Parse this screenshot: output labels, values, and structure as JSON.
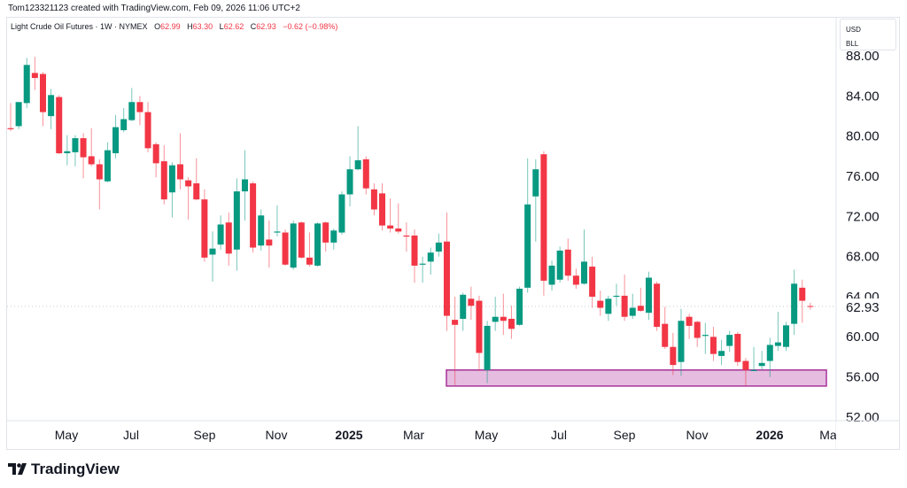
{
  "credit": "Tom123321123 created with TradingView.com, Feb 09, 2026 11:06 UTC+2",
  "legend": {
    "symbol": "Light Crude Oil Futures · 1W · NYMEX",
    "open_key": "O",
    "open": "62.99",
    "high_key": "H",
    "high": "63.30",
    "low_key": "L",
    "low": "62.62",
    "close_key": "C",
    "close": "62.93",
    "change": "−0.62 (−0.98%)"
  },
  "unit_box": {
    "currency": "USD",
    "unit": "BLL"
  },
  "footer": {
    "brand": "TradingView",
    "logo_icon": "tradingview-logo-icon"
  },
  "colors": {
    "up": "#089981",
    "down": "#f23645",
    "zone_fill": "#e6bde0",
    "zone_border": "#a8329a"
  },
  "chart_data": {
    "type": "candlestick",
    "interval": "1W",
    "yticks": [
      "88.00",
      "84.00",
      "80.00",
      "76.00",
      "72.00",
      "68.00",
      "64.00",
      "60.00",
      "56.00",
      "52.00"
    ],
    "ylim": [
      50.5,
      90
    ],
    "last_price_label": "62.93",
    "xticks": [
      {
        "label": "May",
        "bold": false
      },
      {
        "label": "Jul",
        "bold": false
      },
      {
        "label": "Sep",
        "bold": false
      },
      {
        "label": "Nov",
        "bold": false
      },
      {
        "label": "2025",
        "bold": true
      },
      {
        "label": "Mar",
        "bold": false
      },
      {
        "label": "May",
        "bold": false
      },
      {
        "label": "Jul",
        "bold": false
      },
      {
        "label": "Sep",
        "bold": false
      },
      {
        "label": "Nov",
        "bold": false
      },
      {
        "label": "2026",
        "bold": true
      },
      {
        "label": "Ma",
        "bold": false
      }
    ],
    "zone": {
      "top": 56.6,
      "bottom": 55.0
    },
    "ohlc": [
      [
        80.7,
        83.2,
        80.4,
        80.6
      ],
      [
        80.9,
        83.3,
        80.6,
        83.3
      ],
      [
        83.2,
        87.7,
        82.7,
        87.0
      ],
      [
        86.2,
        87.8,
        84.5,
        85.7
      ],
      [
        86.1,
        86.3,
        80.9,
        82.3
      ],
      [
        81.9,
        84.6,
        80.6,
        84.0
      ],
      [
        83.8,
        84.0,
        78.1,
        78.2
      ],
      [
        78.2,
        80.0,
        77.0,
        78.4
      ],
      [
        78.3,
        80.0,
        76.9,
        79.7
      ],
      [
        79.7,
        80.2,
        75.7,
        77.8
      ],
      [
        77.9,
        80.7,
        76.9,
        77.1
      ],
      [
        77.1,
        77.6,
        72.6,
        75.6
      ],
      [
        75.4,
        79.3,
        75.3,
        78.5
      ],
      [
        78.2,
        82.0,
        77.7,
        80.8
      ],
      [
        80.5,
        82.7,
        80.3,
        81.6
      ],
      [
        81.5,
        84.7,
        81.4,
        83.3
      ],
      [
        83.3,
        83.9,
        81.0,
        82.3
      ],
      [
        82.3,
        83.3,
        78.3,
        78.7
      ],
      [
        79.1,
        79.3,
        75.8,
        77.2
      ],
      [
        77.4,
        79.0,
        73.1,
        73.6
      ],
      [
        74.3,
        77.3,
        71.8,
        77.0
      ],
      [
        77.1,
        80.2,
        74.6,
        75.6
      ],
      [
        75.5,
        75.8,
        71.6,
        74.9
      ],
      [
        75.2,
        77.7,
        73.5,
        73.6
      ],
      [
        73.6,
        74.6,
        67.4,
        67.8
      ],
      [
        68.1,
        70.4,
        65.4,
        68.7
      ],
      [
        69.1,
        72.0,
        68.6,
        71.1
      ],
      [
        71.3,
        72.3,
        67.0,
        68.2
      ],
      [
        68.6,
        75.7,
        66.5,
        74.4
      ],
      [
        74.4,
        78.5,
        71.5,
        75.6
      ],
      [
        75.2,
        75.4,
        68.3,
        68.8
      ],
      [
        69.0,
        72.6,
        68.5,
        72.0
      ],
      [
        69.6,
        71.5,
        66.8,
        69.0
      ],
      [
        70.3,
        73.0,
        69.9,
        70.4
      ],
      [
        70.3,
        70.6,
        67.0,
        67.1
      ],
      [
        66.8,
        71.5,
        66.6,
        71.2
      ],
      [
        71.3,
        71.4,
        67.7,
        67.8
      ],
      [
        67.8,
        70.3,
        66.9,
        67.1
      ],
      [
        67.0,
        71.3,
        66.9,
        71.2
      ],
      [
        71.3,
        71.4,
        68.4,
        69.3
      ],
      [
        69.3,
        70.7,
        68.6,
        70.5
      ],
      [
        70.3,
        74.4,
        70.1,
        74.1
      ],
      [
        74.1,
        77.9,
        72.9,
        76.6
      ],
      [
        76.6,
        80.9,
        76.5,
        77.5
      ],
      [
        77.6,
        77.9,
        74.1,
        74.7
      ],
      [
        74.6,
        75.2,
        72.0,
        72.6
      ],
      [
        74.2,
        75.2,
        70.5,
        71.0
      ],
      [
        71.0,
        73.7,
        70.3,
        70.7
      ],
      [
        70.7,
        73.2,
        70.2,
        70.4
      ],
      [
        70.0,
        71.3,
        68.4,
        69.9
      ],
      [
        70.0,
        70.6,
        65.3,
        67.0
      ],
      [
        67.1,
        67.9,
        65.3,
        67.2
      ],
      [
        67.4,
        68.8,
        66.1,
        68.3
      ],
      [
        68.4,
        70.2,
        67.9,
        69.3
      ],
      [
        69.4,
        72.3,
        60.5,
        62.0
      ],
      [
        61.6,
        63.9,
        55.1,
        61.1
      ],
      [
        61.7,
        64.3,
        60.5,
        64.1
      ],
      [
        63.7,
        64.9,
        61.6,
        63.0
      ],
      [
        63.5,
        64.0,
        56.5,
        58.3
      ],
      [
        56.6,
        61.5,
        55.3,
        61.0
      ],
      [
        61.4,
        63.9,
        60.5,
        61.9
      ],
      [
        61.9,
        64.2,
        60.1,
        61.5
      ],
      [
        61.7,
        63.0,
        59.7,
        60.7
      ],
      [
        61.1,
        64.9,
        61.0,
        64.7
      ],
      [
        64.8,
        77.7,
        64.3,
        73.1
      ],
      [
        73.9,
        77.6,
        69.4,
        76.6
      ],
      [
        78.1,
        78.4,
        64.0,
        65.5
      ],
      [
        65.1,
        67.5,
        64.5,
        67.0
      ],
      [
        65.6,
        68.9,
        65.3,
        68.5
      ],
      [
        68.6,
        69.7,
        65.5,
        66.0
      ],
      [
        66.0,
        66.7,
        64.7,
        65.1
      ],
      [
        65.2,
        70.6,
        65.1,
        67.4
      ],
      [
        66.9,
        67.9,
        62.8,
        63.9
      ],
      [
        63.5,
        64.5,
        62.0,
        62.8
      ],
      [
        62.2,
        64.0,
        61.5,
        63.7
      ],
      [
        63.9,
        65.2,
        63.0,
        64.0
      ],
      [
        64.0,
        66.1,
        61.5,
        61.9
      ],
      [
        62.0,
        64.2,
        61.7,
        62.8
      ],
      [
        63.0,
        64.8,
        62.4,
        62.5
      ],
      [
        62.3,
        66.4,
        61.6,
        65.8
      ],
      [
        65.2,
        65.4,
        60.5,
        60.9
      ],
      [
        61.2,
        62.9,
        58.7,
        58.9
      ],
      [
        58.9,
        60.3,
        56.1,
        57.1
      ],
      [
        57.4,
        62.7,
        56.0,
        61.5
      ],
      [
        61.9,
        62.2,
        59.7,
        61.0
      ],
      [
        61.4,
        61.5,
        58.9,
        59.8
      ],
      [
        60.0,
        61.3,
        58.2,
        60.1
      ],
      [
        59.9,
        60.9,
        57.5,
        58.2
      ],
      [
        58.0,
        59.6,
        57.1,
        58.5
      ],
      [
        59.0,
        60.5,
        58.4,
        60.1
      ],
      [
        60.2,
        60.4,
        57.0,
        57.4
      ],
      [
        57.5,
        57.8,
        55.0,
        56.6
      ],
      [
        56.5,
        58.9,
        56.5,
        56.6
      ],
      [
        57.0,
        58.5,
        56.6,
        57.3
      ],
      [
        57.5,
        59.8,
        55.9,
        59.1
      ],
      [
        59.0,
        62.4,
        58.5,
        59.35
      ],
      [
        58.9,
        61.4,
        58.5,
        61.05
      ],
      [
        61.2,
        66.6,
        60.1,
        65.2
      ],
      [
        64.8,
        65.6,
        61.3,
        63.5
      ],
      [
        62.99,
        63.3,
        62.62,
        62.93
      ]
    ]
  }
}
